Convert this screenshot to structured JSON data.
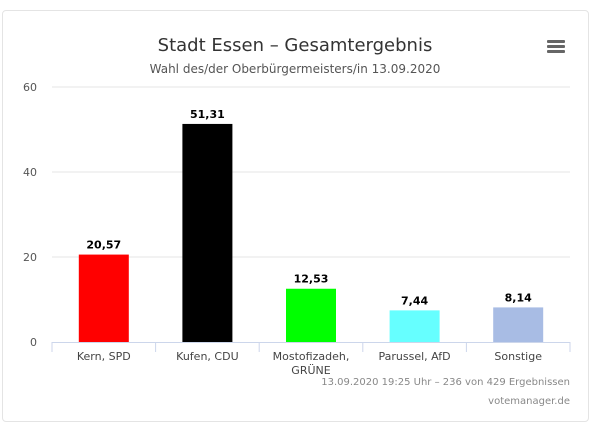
{
  "chart_data": {
    "type": "bar",
    "title": "Stadt Essen – Gesamtergebnis",
    "subtitle": "Wahl des/der Oberbürgermeisters/in 13.09.2020",
    "categories": [
      "Kern, SPD",
      "Kufen, CDU",
      "Mostofizadeh, GRÜNE",
      "Parussel, AfD",
      "Sonstige"
    ],
    "category_lines": [
      [
        "Kern, SPD"
      ],
      [
        "Kufen, CDU"
      ],
      [
        "Mostofizadeh,",
        "GRÜNE"
      ],
      [
        "Parussel, AfD"
      ],
      [
        "Sonstige"
      ]
    ],
    "values": [
      20.57,
      51.31,
      12.53,
      7.44,
      8.14
    ],
    "data_labels": [
      "20,57",
      "51,31",
      "12,53",
      "7,44",
      "8,14"
    ],
    "colors": [
      "#ff0000",
      "#000000",
      "#00ff00",
      "#66ffff",
      "#a8bce4"
    ],
    "ylim": [
      0,
      60
    ],
    "yticks": [
      0,
      20,
      40,
      60
    ],
    "xlabel": "",
    "ylabel": "",
    "grid": true,
    "legend": "none"
  },
  "footer": {
    "status": "13.09.2020 19:25 Uhr – 236 von 429 Ergebnissen",
    "credit": "votemanager.de"
  }
}
